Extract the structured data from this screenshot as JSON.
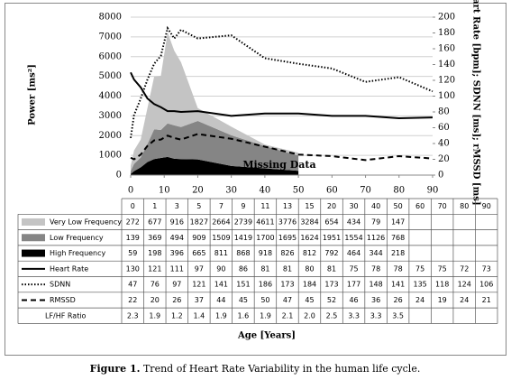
{
  "chart_data": {
    "type": "combo",
    "ylabel": "Power [ms²]",
    "y2label": "Heart Rate [bpm]; SDNN [ms]; rMSSD [ms]",
    "xlabel": "Age [Years]",
    "annotation": "Missing Data",
    "x": [
      0,
      1,
      3,
      5,
      7,
      9,
      11,
      13,
      15,
      20,
      30,
      40,
      50,
      60,
      70,
      80,
      90
    ],
    "xlim": [
      0,
      90
    ],
    "xticks": [
      0,
      10,
      20,
      30,
      40,
      50,
      60,
      70,
      80,
      90
    ],
    "ylim": [
      0,
      8000
    ],
    "yticks": [
      0,
      1000,
      2000,
      3000,
      4000,
      5000,
      6000,
      7000,
      8000
    ],
    "y2lim": [
      0,
      200
    ],
    "y2ticks": [
      0,
      20,
      40,
      60,
      80,
      100,
      120,
      140,
      160,
      180,
      200
    ],
    "grid": true,
    "series": [
      {
        "name": "Very Low Frequency",
        "type": "area",
        "color": "#c4c4c4",
        "values": [
          272,
          677,
          916,
          1827,
          2664,
          2739,
          4611,
          3776,
          3284,
          654,
          434,
          79,
          147,
          null,
          null,
          null,
          null
        ]
      },
      {
        "name": "Low Frequency",
        "type": "area",
        "color": "#858585",
        "values": [
          139,
          369,
          494,
          909,
          1509,
          1419,
          1700,
          1695,
          1624,
          1951,
          1554,
          1126,
          768,
          null,
          null,
          null,
          null
        ]
      },
      {
        "name": "High Frequency",
        "type": "area",
        "color": "#000000",
        "values": [
          59,
          198,
          396,
          665,
          811,
          868,
          918,
          826,
          812,
          792,
          464,
          344,
          218,
          null,
          null,
          null,
          null
        ]
      },
      {
        "name": "Heart Rate",
        "type": "line",
        "axis": "y2",
        "style": "solid",
        "color": "#000000",
        "values": [
          130,
          121,
          111,
          97,
          90,
          86,
          81,
          81,
          80,
          81,
          75,
          78,
          78,
          75,
          75,
          72,
          73
        ]
      },
      {
        "name": "SDNN",
        "type": "line",
        "axis": "y2",
        "style": "dotted",
        "color": "#000000",
        "values": [
          47,
          76,
          97,
          121,
          141,
          151,
          186,
          173,
          184,
          173,
          177,
          148,
          141,
          135,
          118,
          124,
          106
        ]
      },
      {
        "name": "RMSSD",
        "type": "line",
        "axis": "y2",
        "style": "dashed",
        "color": "#000000",
        "values": [
          22,
          20,
          26,
          37,
          44,
          45,
          50,
          47,
          45,
          52,
          46,
          36,
          26,
          24,
          19,
          24,
          21
        ]
      },
      {
        "name": "LF/HF Ratio",
        "type": "table",
        "values": [
          2.3,
          1.9,
          1.2,
          1.4,
          1.9,
          1.6,
          1.9,
          2.1,
          2.0,
          2.5,
          3.3,
          3.3,
          3.5,
          null,
          null,
          null,
          null
        ],
        "value_labels": [
          "2.3",
          "1.9",
          "1.2",
          "1.4",
          "1.9",
          "1.6",
          "1.9",
          "2.1",
          "2.0",
          "2.5",
          "3.3",
          "3.3",
          "3.5",
          null,
          null,
          null,
          null
        ]
      }
    ]
  },
  "caption": {
    "label": "Figure 1.",
    "text": "Trend of Heart Rate Variability in the human life cycle."
  }
}
